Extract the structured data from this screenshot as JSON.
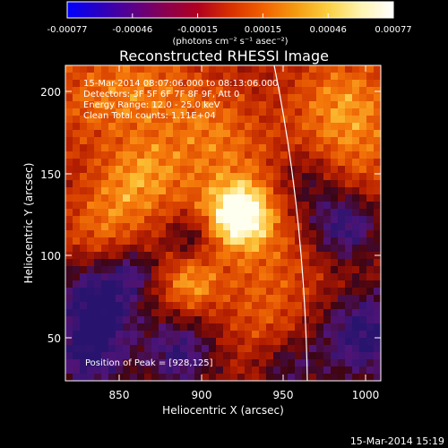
{
  "colorbar": {
    "ticks": [
      "-0.00077",
      "-0.00046",
      "-0.00015",
      "0.00015",
      "0.00046",
      "0.00077"
    ],
    "unit_label": "(photons cm⁻² s⁻¹ asec⁻²)",
    "colors": [
      "#0000ff",
      "#2a00c0",
      "#5a008a",
      "#8a0050",
      "#b00020",
      "#d83000",
      "#f06000",
      "#f59a10",
      "#fad040",
      "#fff4b0",
      "#ffffff"
    ]
  },
  "plot": {
    "title": "Reconstructed RHESSI Image",
    "xlabel": "Heliocentric X (arcsec)",
    "ylabel": "Heliocentric Y (arcsec)",
    "xticks": [
      "850",
      "900",
      "950",
      "1000"
    ],
    "yticks": [
      "50",
      "100",
      "150",
      "200"
    ],
    "info_lines": [
      "15-Mar-2014 08:07:06.000 to 08:13:06.000",
      "Detectors: 3F 5F 6F 7F 8F 9F, Att 0",
      "Energy Range: 12.0 - 25.0 keV",
      "Clean     Total counts: 1.11E+04"
    ],
    "peak_text": "Position of Peak = [928,125]",
    "peak_position": {
      "x": 928,
      "y": 125
    }
  },
  "timestamp": "15-Mar-2014 15:19"
}
